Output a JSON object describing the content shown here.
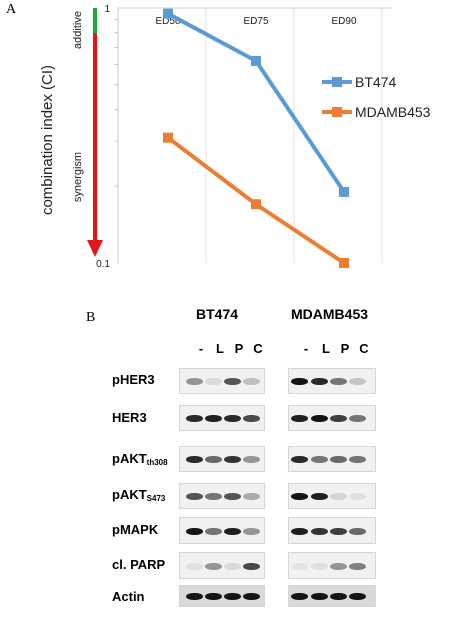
{
  "panel_a": {
    "label": "A",
    "chart_data": {
      "type": "line",
      "categories": [
        "ED50",
        "ED75",
        "ED90"
      ],
      "y_scale": "log",
      "ylim": [
        0.1,
        1
      ],
      "y_ticks": [
        "1",
        "0.1"
      ],
      "ylabel": "combination index (CI)",
      "legend_position": "right",
      "series": [
        {
          "name": "BT474",
          "color": "#5B9BD5",
          "values": [
            0.95,
            0.62,
            0.19
          ]
        },
        {
          "name": "MDAMB453",
          "color": "#ED7D31",
          "values": [
            0.31,
            0.17,
            0.1
          ]
        }
      ]
    },
    "scale_arrow": {
      "top_label": "additive",
      "bottom_label": "synergism",
      "top_color": "#22A83A",
      "bottom_color": "#E0161C"
    }
  },
  "panel_b": {
    "label": "B",
    "cell_lines": [
      "BT474",
      "MDAMB453"
    ],
    "lanes": [
      "-",
      "L",
      "P",
      "C"
    ],
    "rows": [
      {
        "label": "pHER3",
        "sub": ""
      },
      {
        "label": "HER3",
        "sub": ""
      },
      {
        "label": "pAKT",
        "sub": "th308"
      },
      {
        "label": "pAKT",
        "sub": "S473"
      },
      {
        "label": "pMAPK",
        "sub": ""
      },
      {
        "label": "cl. PARP",
        "sub": ""
      },
      {
        "label": "Actin",
        "sub": ""
      }
    ]
  }
}
